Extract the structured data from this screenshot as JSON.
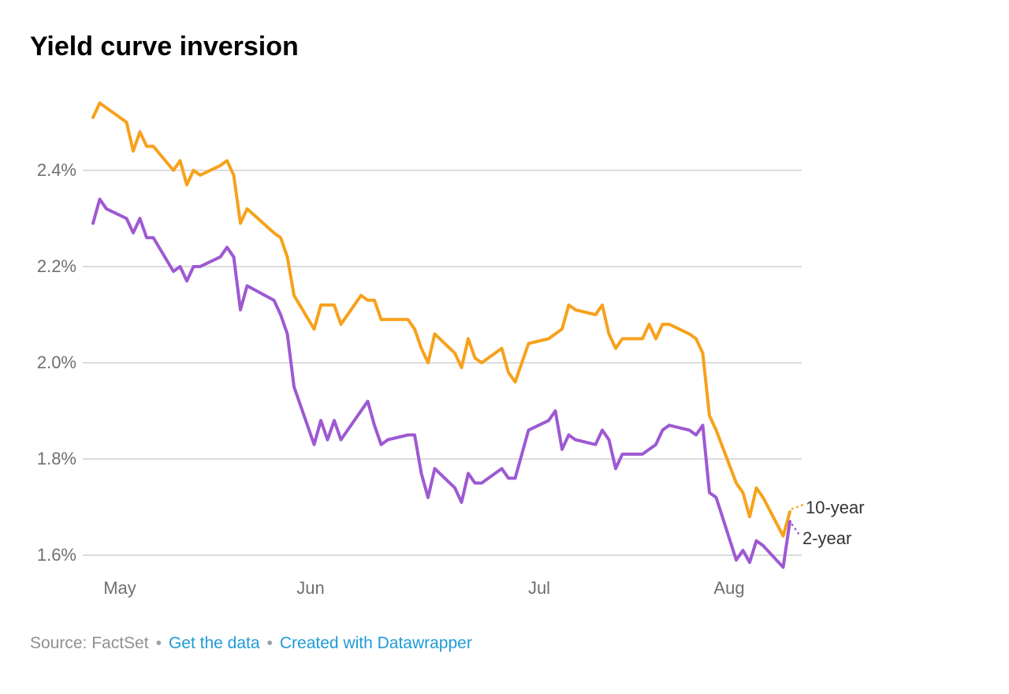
{
  "header": {
    "title": "Yield curve inversion"
  },
  "footer": {
    "source_text": "Source: FactSet",
    "separator": "•",
    "links": [
      {
        "label": "Get the data"
      },
      {
        "label": "Created with Datawrapper"
      }
    ]
  },
  "colors": {
    "ten_year": "#f7a11c",
    "two_year": "#9d59d2",
    "gridline": "#dcdcdc",
    "axis_text": "#6f6f6f",
    "link_blue": "#1f9bd7"
  },
  "chart_data": {
    "type": "line",
    "title": "Yield curve inversion",
    "grid": "horizontal",
    "legend_position": "line-end-labels",
    "ylim": [
      1.55,
      2.56
    ],
    "y_axis": {
      "ticks": [
        {
          "value": 2.4,
          "label": "2.4%"
        },
        {
          "value": 2.2,
          "label": "2.2%"
        },
        {
          "value": 2.0,
          "label": "2.0%"
        },
        {
          "value": 1.8,
          "label": "1.8%"
        },
        {
          "value": 1.6,
          "label": "1.6%"
        }
      ]
    },
    "x_axis": {
      "ticks": [
        "May",
        "Jun",
        "Jul",
        "Aug"
      ]
    },
    "x": [
      "2019-05-01",
      "2019-05-02",
      "2019-05-03",
      "2019-05-06",
      "2019-05-07",
      "2019-05-08",
      "2019-05-09",
      "2019-05-10",
      "2019-05-13",
      "2019-05-14",
      "2019-05-15",
      "2019-05-16",
      "2019-05-17",
      "2019-05-20",
      "2019-05-21",
      "2019-05-22",
      "2019-05-23",
      "2019-05-24",
      "2019-05-28",
      "2019-05-29",
      "2019-05-30",
      "2019-05-31",
      "2019-06-03",
      "2019-06-04",
      "2019-06-05",
      "2019-06-06",
      "2019-06-07",
      "2019-06-10",
      "2019-06-11",
      "2019-06-12",
      "2019-06-13",
      "2019-06-14",
      "2019-06-17",
      "2019-06-18",
      "2019-06-19",
      "2019-06-20",
      "2019-06-21",
      "2019-06-24",
      "2019-06-25",
      "2019-06-26",
      "2019-06-27",
      "2019-06-28",
      "2019-07-01",
      "2019-07-02",
      "2019-07-03",
      "2019-07-05",
      "2019-07-08",
      "2019-07-09",
      "2019-07-10",
      "2019-07-11",
      "2019-07-12",
      "2019-07-15",
      "2019-07-16",
      "2019-07-17",
      "2019-07-18",
      "2019-07-19",
      "2019-07-22",
      "2019-07-23",
      "2019-07-24",
      "2019-07-25",
      "2019-07-26",
      "2019-07-29",
      "2019-07-30",
      "2019-07-31",
      "2019-08-01",
      "2019-08-02",
      "2019-08-05",
      "2019-08-06",
      "2019-08-07",
      "2019-08-08",
      "2019-08-09",
      "2019-08-12",
      "2019-08-13"
    ],
    "series": [
      {
        "name": "10-year",
        "values": [
          2.51,
          2.54,
          2.53,
          2.5,
          2.44,
          2.48,
          2.45,
          2.45,
          2.4,
          2.42,
          2.37,
          2.4,
          2.39,
          2.41,
          2.42,
          2.39,
          2.29,
          2.32,
          2.27,
          2.26,
          2.22,
          2.14,
          2.07,
          2.12,
          2.12,
          2.12,
          2.08,
          2.14,
          2.13,
          2.13,
          2.09,
          2.09,
          2.09,
          2.07,
          2.03,
          2.0,
          2.06,
          2.02,
          1.99,
          2.05,
          2.01,
          2.0,
          2.03,
          1.98,
          1.96,
          2.04,
          2.05,
          2.06,
          2.07,
          2.12,
          2.11,
          2.1,
          2.12,
          2.06,
          2.03,
          2.05,
          2.05,
          2.08,
          2.05,
          2.08,
          2.08,
          2.06,
          2.05,
          2.02,
          1.89,
          1.86,
          1.75,
          1.73,
          1.68,
          1.74,
          1.72,
          1.64,
          1.69
        ]
      },
      {
        "name": "2-year",
        "values": [
          2.29,
          2.34,
          2.32,
          2.3,
          2.27,
          2.3,
          2.26,
          2.26,
          2.19,
          2.2,
          2.17,
          2.2,
          2.2,
          2.22,
          2.24,
          2.22,
          2.11,
          2.16,
          2.13,
          2.1,
          2.06,
          1.95,
          1.83,
          1.88,
          1.84,
          1.88,
          1.84,
          1.9,
          1.92,
          1.87,
          1.83,
          1.84,
          1.85,
          1.85,
          1.77,
          1.72,
          1.78,
          1.74,
          1.71,
          1.77,
          1.75,
          1.75,
          1.78,
          1.76,
          1.76,
          1.86,
          1.88,
          1.9,
          1.82,
          1.85,
          1.84,
          1.83,
          1.86,
          1.84,
          1.78,
          1.81,
          1.81,
          1.82,
          1.83,
          1.86,
          1.87,
          1.86,
          1.85,
          1.87,
          1.73,
          1.72,
          1.59,
          1.61,
          1.585,
          1.63,
          1.62,
          1.575,
          1.67
        ]
      }
    ]
  }
}
